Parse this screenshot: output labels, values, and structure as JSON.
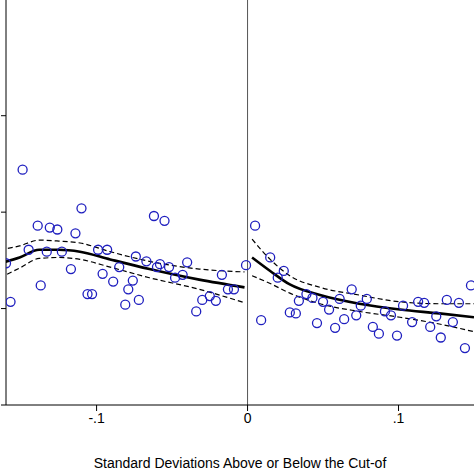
{
  "chart_data": {
    "type": "scatter",
    "x_label": "Standard Deviations Above or Below the Cut-of",
    "xlim": [
      -0.16,
      0.15
    ],
    "xticks": [
      {
        "value": -0.1,
        "label": "-.1"
      },
      0,
      {
        "value": 0.1,
        "label": ".1"
      }
    ],
    "ylim": [
      0,
      4.2
    ],
    "yticks": [
      0,
      1,
      2,
      3
    ],
    "tick_labels": "x",
    "grid": false,
    "reference_line_x": 0,
    "scatter": {
      "color": "#1f1fbf",
      "marker": "hollow_circle",
      "x": [
        -0.16,
        -0.157,
        -0.149,
        -0.145,
        -0.139,
        -0.137,
        -0.133,
        -0.131,
        -0.126,
        -0.123,
        -0.117,
        -0.114,
        -0.11,
        -0.106,
        -0.103,
        -0.099,
        -0.096,
        -0.093,
        -0.089,
        -0.085,
        -0.081,
        -0.079,
        -0.076,
        -0.074,
        -0.072,
        -0.067,
        -0.062,
        -0.06,
        -0.058,
        -0.055,
        -0.052,
        -0.048,
        -0.043,
        -0.04,
        -0.034,
        -0.03,
        -0.025,
        -0.021,
        -0.017,
        -0.013,
        -0.009,
        -0.001,
        0.005,
        0.009,
        0.015,
        0.02,
        0.024,
        0.028,
        0.032,
        0.034,
        0.039,
        0.043,
        0.046,
        0.05,
        0.054,
        0.058,
        0.061,
        0.064,
        0.069,
        0.072,
        0.075,
        0.079,
        0.083,
        0.087,
        0.091,
        0.095,
        0.099,
        0.103,
        0.109,
        0.113,
        0.117,
        0.121,
        0.125,
        0.128,
        0.132,
        0.136,
        0.14,
        0.144,
        0.148
      ],
      "y": [
        1.47,
        1.07,
        2.44,
        1.61,
        1.86,
        1.24,
        1.59,
        1.84,
        1.82,
        1.59,
        1.41,
        1.78,
        2.04,
        1.15,
        1.15,
        1.61,
        1.36,
        1.61,
        1.28,
        1.43,
        1.04,
        1.2,
        1.29,
        1.54,
        1.09,
        1.49,
        1.96,
        1.43,
        1.46,
        1.91,
        1.43,
        1.32,
        1.35,
        1.48,
        0.97,
        1.09,
        1.13,
        1.08,
        1.35,
        1.2,
        1.2,
        1.45,
        1.86,
        0.88,
        1.53,
        1.32,
        1.39,
        0.96,
        0.95,
        1.08,
        1.15,
        1.11,
        0.85,
        1.07,
        0.99,
        0.8,
        1.1,
        0.89,
        1.2,
        0.93,
        1.03,
        1.1,
        0.81,
        0.74,
        0.97,
        0.93,
        0.72,
        1.03,
        0.86,
        1.07,
        1.06,
        0.81,
        0.92,
        0.7,
        1.09,
        0.86,
        1.06,
        0.59,
        1.24
      ]
    },
    "fits": [
      {
        "color": "#000000",
        "line_style": "solid",
        "x": [
          -0.164,
          -0.151,
          -0.138,
          -0.125,
          -0.111,
          -0.091,
          -0.065,
          -0.032,
          -0.002
        ],
        "y": [
          1.47,
          1.53,
          1.61,
          1.61,
          1.59,
          1.51,
          1.41,
          1.3,
          1.22
        ],
        "lower": [
          1.32,
          1.42,
          1.52,
          1.53,
          1.51,
          1.43,
          1.32,
          1.2,
          1.06
        ],
        "upper": [
          1.61,
          1.65,
          1.71,
          1.7,
          1.68,
          1.59,
          1.49,
          1.41,
          1.38
        ]
      },
      {
        "color": "#000000",
        "line_style": "solid",
        "x": [
          0.003,
          0.015,
          0.028,
          0.048,
          0.074,
          0.101,
          0.127,
          0.15
        ],
        "y": [
          1.53,
          1.39,
          1.25,
          1.14,
          1.05,
          0.99,
          0.95,
          0.91
        ],
        "lower": [
          1.34,
          1.26,
          1.16,
          1.05,
          0.97,
          0.91,
          0.84,
          0.76
        ],
        "upper": [
          1.72,
          1.51,
          1.34,
          1.22,
          1.14,
          1.07,
          1.05,
          1.05
        ]
      }
    ]
  }
}
